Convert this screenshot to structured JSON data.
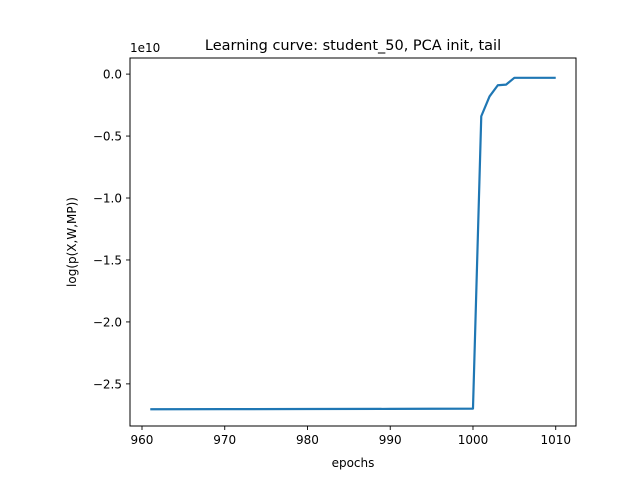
{
  "chart_data": {
    "type": "line",
    "title": "Learning curve: student_50, PCA init, tail",
    "xlabel": "epochs",
    "ylabel": "log(p(X,W,MP))",
    "y_offset_label": "1e10",
    "y_scale_factor": 10000000000,
    "xlim": [
      958.55,
      1012.45
    ],
    "ylim": [
      -28400000000,
      1300000000
    ],
    "x_ticks": [
      960,
      970,
      980,
      990,
      1000,
      1010
    ],
    "x_tick_labels": [
      "960",
      "970",
      "980",
      "990",
      "1000",
      "1010"
    ],
    "y_ticks": [
      -25000000000,
      -20000000000,
      -15000000000,
      -10000000000,
      -5000000000,
      0
    ],
    "y_tick_labels": [
      "−2.5",
      "−2.0",
      "−1.5",
      "−1.0",
      "−0.5",
      "0.0"
    ],
    "grid": false,
    "series": [
      {
        "color": "#1f77b4",
        "x": [
          961,
          970,
          980,
          990,
          1000,
          1001,
          1002,
          1003,
          1004,
          1005,
          1006,
          1007,
          1008,
          1009,
          1010
        ],
        "y": [
          -27050000000,
          -27040000000,
          -27030000000,
          -27020000000,
          -27000000000,
          -3400000000,
          -1800000000,
          -900000000,
          -850000000,
          -300000000,
          -300000000,
          -300000000,
          -300000000,
          -300000000,
          -300000000
        ]
      }
    ]
  }
}
